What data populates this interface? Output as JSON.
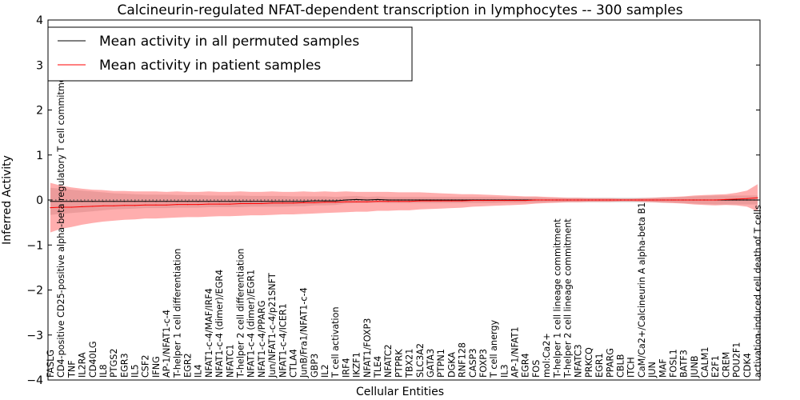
{
  "chart_data": {
    "type": "line",
    "title": "Calcineurin-regulated NFAT-dependent transcription in lymphocytes -- 300 samples",
    "xlabel": "Cellular Entities",
    "ylabel": "Inferred Activity",
    "ylim": [
      -4,
      4
    ],
    "yticks": [
      -4,
      -3,
      -2,
      -1,
      0,
      1,
      2,
      3,
      4
    ],
    "ytick_labels": [
      "−4",
      "−3",
      "−2",
      "−1",
      "0",
      "1",
      "2",
      "3",
      "4"
    ],
    "reference_line": 0,
    "legend_position": "top-left",
    "categories": [
      "FASLG",
      "CD4-positive CD25-positive alpha-beta regulatory T cell commitment",
      "TNF",
      "IL2RA",
      "CD40LG",
      "IL8",
      "PTGS2",
      "EGR3",
      "IL5",
      "CSF2",
      "IFNG",
      "AP-1/NFAT1-c-4",
      "T-helper 1 cell differentiation",
      "EGR2",
      "IL4",
      "NFAT1-c-4/MAF/IRF4",
      "NFAT1-c-4 (dimer)/EGR4",
      "NFATC1",
      "T-helper 2 cell differentiation",
      "NFAT1-c-4 (dimer)/EGR1",
      "NFAT1-c-4/PPARG",
      "Jun/NFAT1-c-4/p21SNFT",
      "NFAT1-c-4/ICER1",
      "CTLA4",
      "JunB/Fra1/NFAT1-c-4",
      "GBP3",
      "IL2",
      "T cell activation",
      "IRF4",
      "IKZF1",
      "NFAT1/FOXP3",
      "TLE4",
      "NFATC2",
      "PTPRK",
      "TBX21",
      "SLC3A2",
      "GATA3",
      "PTPN1",
      "DGKA",
      "RNF128",
      "CASP3",
      "FOXP3",
      "T cell anergy",
      "IL3",
      "AP-1/NFAT1",
      "EGR4",
      "FOS",
      "mol:Ca2+",
      "T-helper 1 cell lineage commitment",
      "T-helper 2 cell lineage commitment",
      "NFATC3",
      "PRKCQ",
      "EGR1",
      "PPARG",
      "CBLB",
      "ITCH",
      "CaM/Ca2+/Calcineurin A alpha-beta B1",
      "JUN",
      "MAF",
      "FOSL1",
      "BATF3",
      "JUNB",
      "CALM1",
      "E2F1",
      "CREM",
      "POU2F1",
      "CDK4",
      "activation-induced cell death of T cells"
    ],
    "series": [
      {
        "name": "Mean activity in all permuted samples",
        "color": "#000000",
        "values": [
          -0.03,
          -0.03,
          -0.03,
          -0.03,
          -0.03,
          -0.03,
          -0.03,
          -0.03,
          -0.03,
          -0.03,
          -0.03,
          -0.03,
          -0.03,
          -0.03,
          -0.03,
          -0.03,
          -0.03,
          -0.03,
          -0.03,
          -0.03,
          -0.03,
          -0.03,
          -0.03,
          -0.03,
          -0.03,
          -0.02,
          -0.02,
          -0.02,
          0.0,
          0.01,
          0.0,
          0.01,
          0.0,
          0.0,
          0.0,
          0.0,
          0.0,
          0.0,
          0.0,
          0.0,
          0.0,
          0.0,
          0.0,
          0.0,
          0.0,
          0.0,
          0.0,
          0.0,
          0.0,
          0.0,
          0.0,
          0.0,
          0.0,
          0.0,
          0.0,
          0.0,
          0.0,
          0.0,
          0.0,
          0.0,
          0.0,
          0.0,
          0.0,
          0.0,
          0.0,
          0.0,
          0.0,
          0.0
        ],
        "band": [
          0.3,
          0.28,
          0.26,
          0.24,
          0.22,
          0.2,
          0.18,
          0.17,
          0.16,
          0.15,
          0.15,
          0.15,
          0.14,
          0.14,
          0.14,
          0.13,
          0.13,
          0.13,
          0.13,
          0.12,
          0.12,
          0.12,
          0.12,
          0.11,
          0.11,
          0.1,
          0.1,
          0.09,
          0.08,
          0.08,
          0.07,
          0.07,
          0.07,
          0.07,
          0.07,
          0.07,
          0.07,
          0.07,
          0.07,
          0.07,
          0.07,
          0.07,
          0.07,
          0.06,
          0.06,
          0.06,
          0.06,
          0.05,
          0.05,
          0.05,
          0.05,
          0.05,
          0.05,
          0.05,
          0.05,
          0.05,
          0.05,
          0.05,
          0.06,
          0.06,
          0.07,
          0.08,
          0.09,
          0.1,
          0.1,
          0.1,
          0.1,
          0.1
        ]
      },
      {
        "name": "Mean activity in patient samples",
        "color": "#ff0000",
        "values": [
          -0.17,
          -0.16,
          -0.16,
          -0.15,
          -0.14,
          -0.13,
          -0.13,
          -0.12,
          -0.12,
          -0.11,
          -0.11,
          -0.11,
          -0.1,
          -0.1,
          -0.1,
          -0.09,
          -0.09,
          -0.09,
          -0.08,
          -0.08,
          -0.08,
          -0.07,
          -0.07,
          -0.07,
          -0.06,
          -0.06,
          -0.05,
          -0.05,
          -0.04,
          -0.04,
          -0.04,
          -0.03,
          -0.03,
          -0.03,
          -0.03,
          -0.02,
          -0.02,
          -0.02,
          -0.02,
          -0.02,
          -0.01,
          -0.01,
          -0.01,
          -0.01,
          -0.01,
          -0.01,
          0.0,
          0.0,
          0.0,
          0.0,
          0.0,
          0.0,
          0.0,
          0.0,
          0.0,
          0.0,
          0.0,
          0.0,
          0.0,
          0.0,
          0.0,
          0.0,
          0.0,
          0.0,
          0.01,
          0.02,
          0.03,
          0.05
        ],
        "band": [
          0.55,
          0.48,
          0.44,
          0.4,
          0.37,
          0.35,
          0.33,
          0.32,
          0.31,
          0.3,
          0.3,
          0.29,
          0.29,
          0.28,
          0.28,
          0.28,
          0.27,
          0.27,
          0.27,
          0.26,
          0.26,
          0.26,
          0.25,
          0.25,
          0.25,
          0.24,
          0.24,
          0.23,
          0.23,
          0.22,
          0.22,
          0.21,
          0.21,
          0.2,
          0.2,
          0.19,
          0.18,
          0.17,
          0.16,
          0.15,
          0.14,
          0.13,
          0.12,
          0.11,
          0.1,
          0.09,
          0.08,
          0.07,
          0.06,
          0.05,
          0.05,
          0.04,
          0.04,
          0.04,
          0.03,
          0.03,
          0.04,
          0.05,
          0.06,
          0.07,
          0.08,
          0.1,
          0.11,
          0.12,
          0.12,
          0.14,
          0.18,
          0.3
        ]
      }
    ]
  }
}
